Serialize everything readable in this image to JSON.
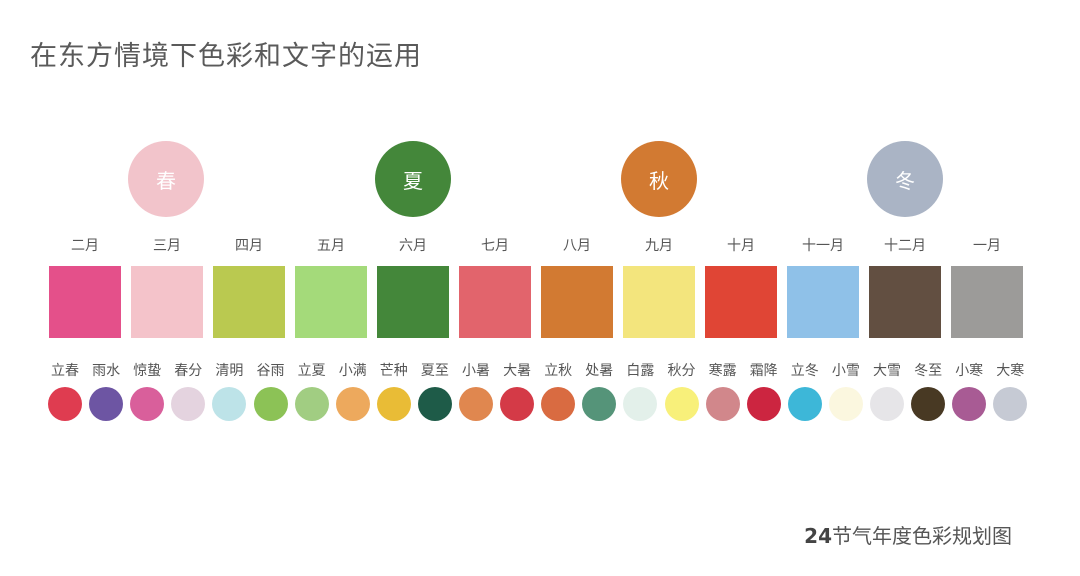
{
  "title": "在东方情境下色彩和文字的运用",
  "seasons": [
    {
      "label": "春",
      "color": "#f2c4cb"
    },
    {
      "label": "夏",
      "color": "#44873a"
    },
    {
      "label": "秋",
      "color": "#d27a32"
    },
    {
      "label": "冬",
      "color": "#aab4c5"
    }
  ],
  "months": [
    {
      "label": "二月",
      "color": "#e4508a"
    },
    {
      "label": "三月",
      "color": "#f4c3ca"
    },
    {
      "label": "四月",
      "color": "#bac950"
    },
    {
      "label": "五月",
      "color": "#a4da7a"
    },
    {
      "label": "六月",
      "color": "#44873a"
    },
    {
      "label": "七月",
      "color": "#e2646c"
    },
    {
      "label": "八月",
      "color": "#d27a32"
    },
    {
      "label": "九月",
      "color": "#f3e57d"
    },
    {
      "label": "十月",
      "color": "#e04535"
    },
    {
      "label": "十一月",
      "color": "#8fc1e8"
    },
    {
      "label": "十二月",
      "color": "#624f41"
    },
    {
      "label": "一月",
      "color": "#9c9b99"
    }
  ],
  "terms": [
    {
      "label": "立春",
      "color": "#df3c50"
    },
    {
      "label": "雨水",
      "color": "#6d55a3"
    },
    {
      "label": "惊蛰",
      "color": "#d95f9b"
    },
    {
      "label": "春分",
      "color": "#e4d3df"
    },
    {
      "label": "清明",
      "color": "#bde3e8"
    },
    {
      "label": "谷雨",
      "color": "#8cc256"
    },
    {
      "label": "立夏",
      "color": "#a1cd82"
    },
    {
      "label": "小满",
      "color": "#eda95d"
    },
    {
      "label": "芒种",
      "color": "#e9bc36"
    },
    {
      "label": "夏至",
      "color": "#1e5b48"
    },
    {
      "label": "小暑",
      "color": "#e0874f"
    },
    {
      "label": "大暑",
      "color": "#d43a47"
    },
    {
      "label": "立秋",
      "color": "#d96b41"
    },
    {
      "label": "处暑",
      "color": "#559479"
    },
    {
      "label": "白露",
      "color": "#e3f0ea"
    },
    {
      "label": "秋分",
      "color": "#f8f07a"
    },
    {
      "label": "寒露",
      "color": "#d1878b"
    },
    {
      "label": "霜降",
      "color": "#cc2540"
    },
    {
      "label": "立冬",
      "color": "#3db7d8"
    },
    {
      "label": "小雪",
      "color": "#fbf7df"
    },
    {
      "label": "大雪",
      "color": "#e6e5e8"
    },
    {
      "label": "冬至",
      "color": "#483923"
    },
    {
      "label": "小寒",
      "color": "#a85b94"
    },
    {
      "label": "大寒",
      "color": "#c6cad4"
    }
  ],
  "footer": {
    "number": "24",
    "text": "节气年度色彩规划图"
  }
}
